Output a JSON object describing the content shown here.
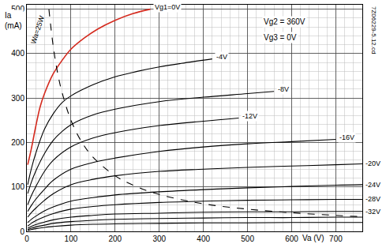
{
  "chart_data": {
    "type": "line",
    "x_label": "Va (V)",
    "y_label": "Ia (mA)",
    "annotations": [
      "Vg2 = 360V",
      "Vg3 = 0V",
      "7Z06229-5.12.cd"
    ],
    "xlim": [
      0,
      760
    ],
    "ylim": [
      0,
      510
    ],
    "xticks": [
      0,
      100,
      200,
      300,
      400,
      500,
      600,
      700
    ],
    "yticks": [
      0,
      100,
      200,
      300,
      400,
      500
    ],
    "grid": true,
    "series": [
      {
        "name": "Vg1=0V",
        "color": "#d42a1e",
        "line_style": "solid",
        "x": [
          2,
          10,
          20,
          30,
          40,
          60,
          80,
          100,
          130,
          160,
          200,
          240,
          280
        ],
        "values": [
          150,
          185,
          235,
          280,
          310,
          355,
          385,
          410,
          435,
          455,
          475,
          490,
          500
        ]
      },
      {
        "name": "-4V",
        "color": "#000000",
        "line_style": "solid",
        "x": [
          2,
          10,
          20,
          40,
          60,
          80,
          100,
          150,
          200,
          250,
          300,
          350,
          420
        ],
        "values": [
          105,
          140,
          175,
          230,
          265,
          290,
          305,
          330,
          348,
          360,
          370,
          378,
          388
        ]
      },
      {
        "name": "-8V",
        "color": "#000000",
        "line_style": "solid",
        "x": [
          2,
          10,
          20,
          40,
          60,
          80,
          100,
          150,
          200,
          300,
          400,
          500,
          560
        ],
        "values": [
          85,
          110,
          135,
          175,
          205,
          225,
          240,
          262,
          275,
          292,
          302,
          310,
          315
        ]
      },
      {
        "name": "-12V",
        "color": "#000000",
        "line_style": "solid",
        "x": [
          2,
          10,
          20,
          40,
          60,
          100,
          150,
          200,
          300,
          400,
          480
        ],
        "values": [
          60,
          80,
          100,
          135,
          160,
          190,
          210,
          222,
          238,
          248,
          255
        ]
      },
      {
        "name": "-16V",
        "color": "#000000",
        "line_style": "solid",
        "x": [
          2,
          10,
          20,
          40,
          60,
          100,
          150,
          200,
          300,
          400,
          500,
          600,
          700
        ],
        "values": [
          45,
          58,
          72,
          95,
          115,
          140,
          155,
          165,
          180,
          190,
          197,
          202,
          207
        ]
      },
      {
        "name": "-20V",
        "color": "#000000",
        "line_style": "solid",
        "x": [
          2,
          10,
          20,
          40,
          60,
          100,
          150,
          200,
          300,
          400,
          500,
          600,
          700,
          760
        ],
        "values": [
          32,
          42,
          52,
          70,
          85,
          105,
          117,
          125,
          135,
          140,
          144,
          147,
          150,
          152
        ]
      },
      {
        "name": "-24V",
        "color": "#000000",
        "line_style": "solid",
        "x": [
          2,
          10,
          20,
          40,
          60,
          100,
          150,
          200,
          300,
          400,
          500,
          600,
          700,
          760
        ],
        "values": [
          20,
          27,
          34,
          46,
          55,
          68,
          76,
          82,
          89,
          94,
          98,
          101,
          104,
          105
        ]
      },
      {
        "name": "-28V",
        "color": "#000000",
        "line_style": "solid",
        "x": [
          2,
          10,
          20,
          40,
          60,
          100,
          150,
          200,
          300,
          400,
          500,
          600,
          700,
          760
        ],
        "values": [
          12,
          18,
          24,
          33,
          40,
          50,
          56,
          60,
          65,
          68,
          70,
          71,
          72,
          72
        ]
      },
      {
        "name": "-32V",
        "color": "#000000",
        "line_style": "solid",
        "x": [
          2,
          10,
          20,
          40,
          60,
          100,
          150,
          200,
          300,
          400,
          500,
          600,
          700,
          760
        ],
        "values": [
          7,
          11,
          15,
          21,
          26,
          32,
          36,
          39,
          41,
          43,
          44,
          44,
          45,
          45
        ]
      },
      {
        "name": null,
        "color": "#000000",
        "line_style": "solid",
        "x": [
          2,
          10,
          20,
          40,
          60,
          100,
          150,
          200,
          300,
          400,
          500,
          600,
          700,
          760
        ],
        "values": [
          4,
          7,
          10,
          14,
          18,
          22,
          25,
          27,
          29,
          30,
          31,
          31,
          32,
          32
        ]
      },
      {
        "name": null,
        "color": "#000000",
        "line_style": "solid",
        "x": [
          2,
          10,
          20,
          40,
          60,
          100,
          150,
          200,
          300,
          400,
          500,
          600,
          700,
          760
        ],
        "values": [
          2,
          4,
          6,
          9,
          11,
          14,
          16,
          17,
          18,
          19,
          19,
          20,
          20,
          20
        ]
      },
      {
        "name": "Wa=25W",
        "color": "#000000",
        "line_style": "dashed",
        "x": [
          50,
          60,
          70,
          80,
          100,
          125,
          150,
          200,
          250,
          300,
          400,
          500,
          600,
          700,
          760
        ],
        "values": [
          500,
          415,
          355,
          312,
          250,
          200,
          167,
          125,
          100,
          83,
          62,
          50,
          42,
          36,
          33
        ]
      }
    ]
  }
}
